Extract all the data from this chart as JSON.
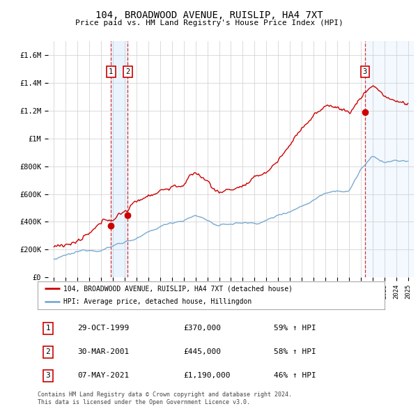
{
  "title": "104, BROADWOOD AVENUE, RUISLIP, HA4 7XT",
  "subtitle": "Price paid vs. HM Land Registry's House Price Index (HPI)",
  "legend_label_red": "104, BROADWOOD AVENUE, RUISLIP, HA4 7XT (detached house)",
  "legend_label_blue": "HPI: Average price, detached house, Hillingdon",
  "footer1": "Contains HM Land Registry data © Crown copyright and database right 2024.",
  "footer2": "This data is licensed under the Open Government Licence v3.0.",
  "transactions": [
    {
      "num": 1,
      "date": "29-OCT-1999",
      "price": 370000,
      "pct": "59%",
      "dir": "↑",
      "x_year": 1999.83
    },
    {
      "num": 2,
      "date": "30-MAR-2001",
      "price": 445000,
      "pct": "58%",
      "dir": "↑",
      "x_year": 2001.25
    },
    {
      "num": 3,
      "date": "07-MAY-2021",
      "price": 1190000,
      "pct": "46%",
      "dir": "↑",
      "x_year": 2021.36
    }
  ],
  "ylim": [
    0,
    1700000
  ],
  "yticks": [
    0,
    200000,
    400000,
    600000,
    800000,
    1000000,
    1200000,
    1400000,
    1600000
  ],
  "ytick_labels": [
    "£0",
    "£200K",
    "£400K",
    "£600K",
    "£800K",
    "£1M",
    "£1.2M",
    "£1.4M",
    "£1.6M"
  ],
  "xlim_start": 1994.5,
  "xlim_end": 2025.5,
  "xticks": [
    1995,
    1996,
    1997,
    1998,
    1999,
    2000,
    2001,
    2002,
    2003,
    2004,
    2005,
    2006,
    2007,
    2008,
    2009,
    2010,
    2011,
    2012,
    2013,
    2014,
    2015,
    2016,
    2017,
    2018,
    2019,
    2020,
    2021,
    2022,
    2023,
    2024,
    2025
  ],
  "red_color": "#cc0000",
  "blue_color": "#7aaad0",
  "shade_color": "#ddeeff",
  "grid_color": "#cccccc",
  "bg_color": "#ffffff",
  "hpi_knots_x": [
    1995,
    1996,
    1997,
    1998,
    1999,
    2000,
    2001,
    2002,
    2003,
    2004,
    2005,
    2006,
    2007,
    2008,
    2009,
    2010,
    2011,
    2012,
    2013,
    2014,
    2015,
    2016,
    2017,
    2018,
    2019,
    2020,
    2021,
    2022,
    2023,
    2024,
    2025
  ],
  "hpi_knots_y": [
    130000,
    148000,
    165000,
    185000,
    200000,
    230000,
    265000,
    290000,
    320000,
    360000,
    395000,
    420000,
    450000,
    420000,
    370000,
    385000,
    395000,
    390000,
    415000,
    450000,
    490000,
    530000,
    580000,
    640000,
    670000,
    660000,
    820000,
    900000,
    860000,
    870000,
    860000
  ],
  "red_knots_x": [
    1995,
    1996,
    1997,
    1998,
    1999,
    2000,
    2001,
    2002,
    2003,
    2004,
    2005,
    2006,
    2007,
    2008,
    2009,
    2010,
    2011,
    2012,
    2013,
    2014,
    2015,
    2016,
    2017,
    2018,
    2019,
    2020,
    2021,
    2022,
    2023,
    2024,
    2025
  ],
  "red_knots_y": [
    220000,
    250000,
    270000,
    295000,
    340000,
    390000,
    450000,
    510000,
    570000,
    620000,
    650000,
    670000,
    740000,
    680000,
    600000,
    630000,
    660000,
    680000,
    730000,
    820000,
    930000,
    1060000,
    1160000,
    1200000,
    1220000,
    1170000,
    1280000,
    1380000,
    1310000,
    1260000,
    1240000
  ]
}
